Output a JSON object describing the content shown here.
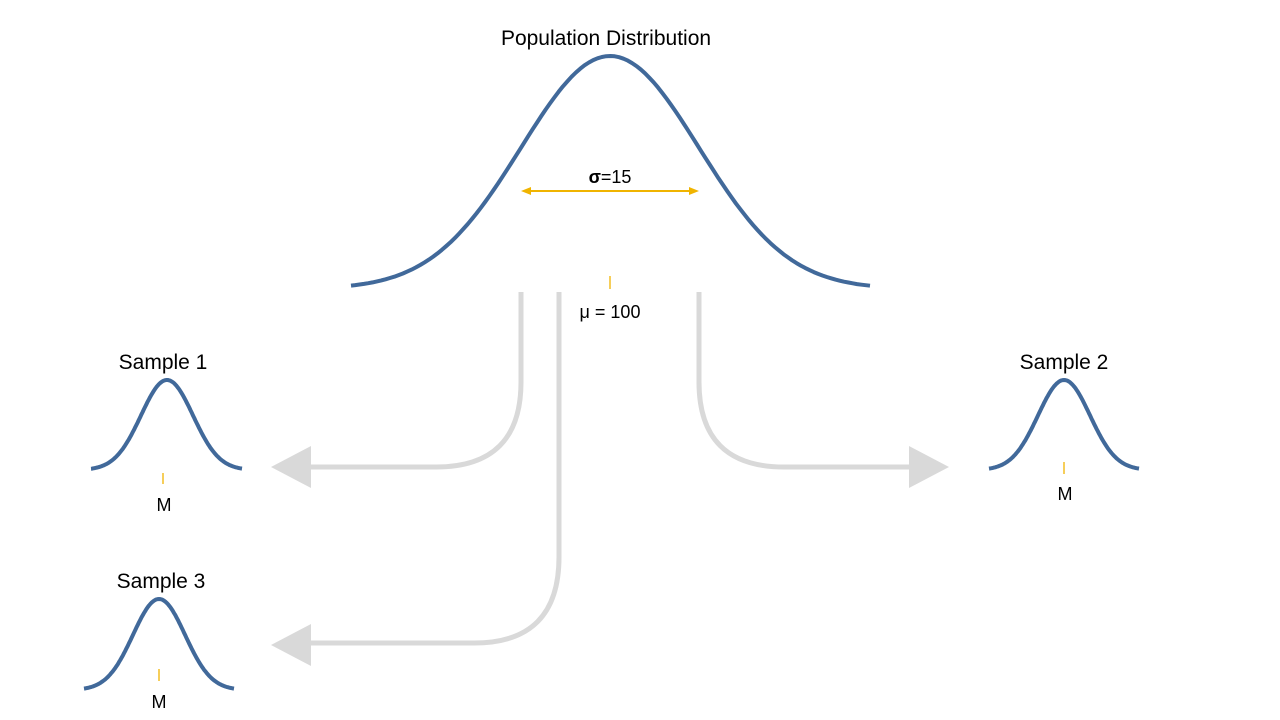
{
  "population": {
    "title": "Population Distribution",
    "sigma_symbol": "σ",
    "sigma_value": "=15",
    "mean_label": "μ = 100"
  },
  "samples": [
    {
      "title": "Sample 1",
      "mean_label": "M"
    },
    {
      "title": "Sample 2",
      "mean_label": "M"
    },
    {
      "title": "Sample 3",
      "mean_label": "M"
    }
  ],
  "colors": {
    "curve": "#41699a",
    "accent": "#f0b400",
    "arrow": "#d9d9d9"
  }
}
